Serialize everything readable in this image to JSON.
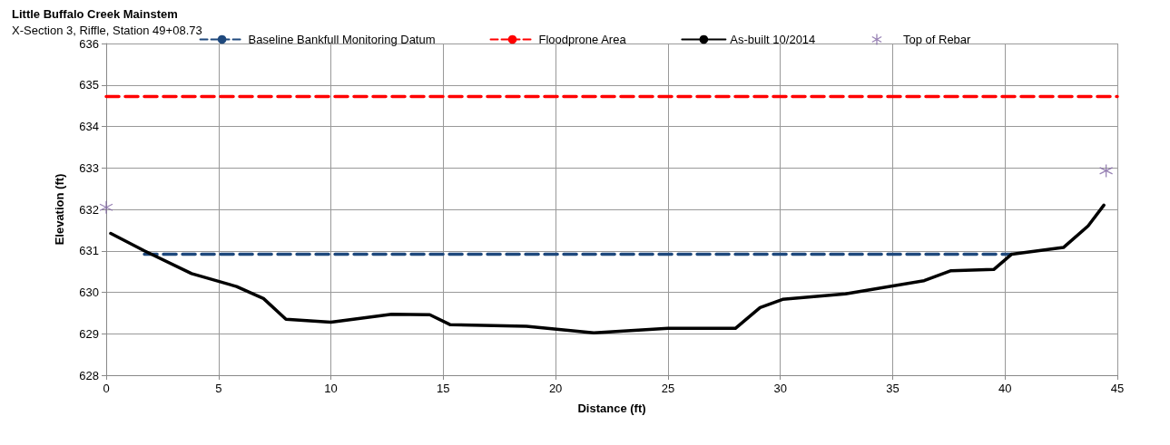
{
  "chart_data": {
    "type": "line",
    "title": "Little Buffalo Creek Mainstem",
    "subtitle": "X-Section 3, Riffle, Station 49+08.73",
    "xlabel": "Distance (ft)",
    "ylabel": "Elevation (ft)",
    "xlim": [
      0,
      45
    ],
    "xticks": [
      0,
      5,
      10,
      15,
      20,
      25,
      30,
      35,
      40,
      45
    ],
    "ylim": [
      628,
      636
    ],
    "yticks": [
      628,
      629,
      630,
      631,
      632,
      633,
      634,
      635,
      636
    ],
    "grid": true,
    "legend": "top",
    "series": [
      {
        "name": "Baseline Bankfull Monitoring Datum",
        "color": "#1f497d",
        "line_style": "dashed",
        "marker": "none",
        "x": [
          1.7,
          40.3
        ],
        "values": [
          630.92,
          630.92
        ]
      },
      {
        "name": "Floodprone Area",
        "color": "#ff0000",
        "line_style": "dashed",
        "marker": "none",
        "x": [
          0,
          45
        ],
        "values": [
          634.72,
          634.72
        ]
      },
      {
        "name": "As-built 10/2014",
        "color": "#000000",
        "line_style": "solid",
        "marker": "none",
        "x": [
          0.2,
          1.7,
          3.8,
          5.8,
          7.0,
          8.0,
          10,
          12.7,
          14.4,
          15.3,
          18.7,
          21.7,
          25,
          28,
          29.1,
          30.1,
          32.9,
          36.4,
          37.6,
          39.5,
          40.3,
          42.6,
          43.7,
          44.4
        ],
        "values": [
          631.42,
          631.0,
          630.45,
          630.14,
          629.85,
          629.35,
          629.28,
          629.47,
          629.46,
          629.22,
          629.18,
          629.02,
          629.13,
          629.13,
          629.63,
          629.83,
          629.96,
          630.28,
          630.52,
          630.55,
          630.92,
          631.08,
          631.6,
          632.1
        ]
      },
      {
        "name": "Top of Rebar",
        "type": "scatter",
        "color": "#8064a2",
        "marker": "cross",
        "x": [
          0,
          44.5
        ],
        "values": [
          632.05,
          632.93
        ]
      }
    ]
  }
}
